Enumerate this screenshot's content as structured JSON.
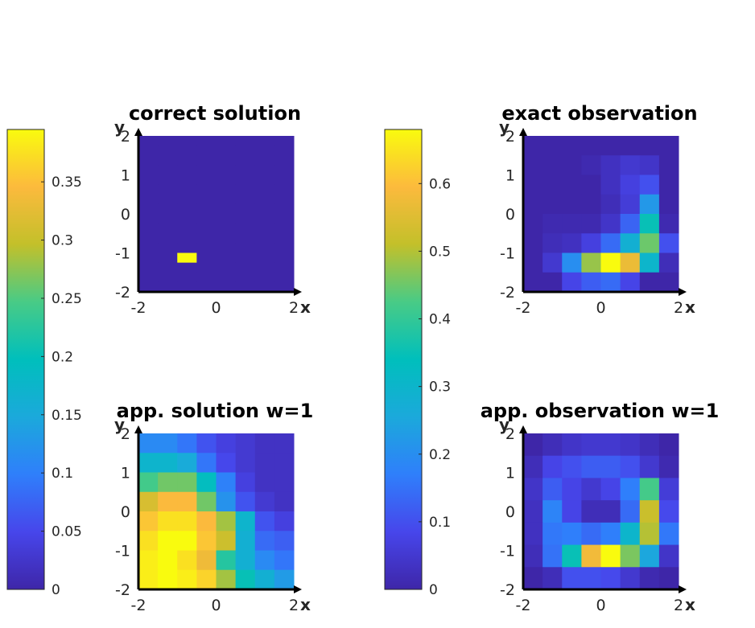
{
  "chart_data": [
    {
      "type": "heatmap",
      "title": "correct solution",
      "xlabel": "x",
      "ylabel": "y",
      "xlim": [
        -2,
        2
      ],
      "ylim": [
        -2,
        2
      ],
      "xticks": [
        "-2",
        "0",
        "2"
      ],
      "yticks": [
        "2",
        "1",
        "0",
        "-1",
        "-2"
      ],
      "colorbar": "left",
      "clim": [
        0,
        0.39
      ],
      "grid_rows_top_to_bottom": [
        [
          0,
          0,
          0,
          0,
          0,
          0,
          0,
          0
        ],
        [
          0,
          0,
          0,
          0,
          0,
          0,
          0,
          0
        ],
        [
          0,
          0,
          0,
          0,
          0,
          0,
          0,
          0
        ],
        [
          0,
          0,
          0,
          0,
          0,
          0,
          0,
          0
        ],
        [
          0,
          0,
          0,
          0,
          0,
          0,
          0,
          0
        ],
        [
          0,
          0,
          0,
          0,
          0,
          0,
          0,
          0
        ],
        [
          0,
          0,
          0,
          0,
          0,
          0,
          0,
          0
        ],
        [
          0,
          0,
          0,
          0,
          0,
          0,
          0,
          0
        ],
        [
          0,
          0,
          0,
          0,
          0,
          0,
          0,
          0
        ],
        [
          0,
          0,
          0,
          0,
          0,
          0,
          0,
          0
        ],
        [
          0,
          0,
          0,
          0,
          0,
          0,
          0,
          0
        ],
        [
          0,
          0,
          0,
          0,
          0,
          0,
          0,
          0
        ],
        [
          0,
          0,
          0.39,
          0,
          0,
          0,
          0,
          0
        ],
        [
          0,
          0,
          0,
          0,
          0,
          0,
          0,
          0
        ],
        [
          0,
          0,
          0,
          0,
          0,
          0,
          0,
          0
        ],
        [
          0,
          0,
          0,
          0,
          0,
          0,
          0,
          0
        ]
      ]
    },
    {
      "type": "heatmap",
      "title": "exact observation",
      "xlabel": "x",
      "ylabel": "y",
      "xlim": [
        -2,
        2
      ],
      "ylim": [
        -2,
        2
      ],
      "xticks": [
        "-2",
        "0",
        "2"
      ],
      "yticks": [
        "2",
        "1",
        "0",
        "-1",
        "-2"
      ],
      "colorbar": "left",
      "clim": [
        0,
        0.68
      ],
      "grid_rows_top_to_bottom": [
        [
          0,
          0,
          0,
          0,
          0,
          0,
          0,
          0
        ],
        [
          0,
          0,
          0,
          0.01,
          0.03,
          0.05,
          0.04,
          0
        ],
        [
          0,
          0,
          0,
          0,
          0.03,
          0.07,
          0.1,
          0
        ],
        [
          0,
          0,
          0,
          0,
          0.02,
          0.06,
          0.22,
          0
        ],
        [
          0,
          0.01,
          0.01,
          0.01,
          0.04,
          0.13,
          0.35,
          0.01
        ],
        [
          0,
          0.02,
          0.03,
          0.07,
          0.14,
          0.28,
          0.45,
          0.1
        ],
        [
          0,
          0.05,
          0.2,
          0.48,
          0.68,
          0.57,
          0.3,
          0.02
        ],
        [
          0,
          0,
          0.08,
          0.12,
          0.14,
          0.08,
          0,
          0
        ]
      ]
    },
    {
      "type": "heatmap",
      "title": "app. solution w=1",
      "xlabel": "x",
      "ylabel": "y",
      "xlim": [
        -2,
        2
      ],
      "ylim": [
        -2,
        2
      ],
      "xticks": [
        "-2",
        "0",
        "2"
      ],
      "yticks": [
        "2",
        "1",
        "0",
        "-1",
        "-2"
      ],
      "colorbar": "left",
      "clim": [
        0,
        0.39
      ],
      "grid_rows_top_to_bottom": [
        [
          0.11,
          0.11,
          0.09,
          0.06,
          0.04,
          0.03,
          0.02,
          0.02
        ],
        [
          0.17,
          0.17,
          0.15,
          0.09,
          0.05,
          0.03,
          0.02,
          0.02
        ],
        [
          0.24,
          0.26,
          0.26,
          0.19,
          0.1,
          0.04,
          0.02,
          0.02
        ],
        [
          0.31,
          0.34,
          0.34,
          0.26,
          0.12,
          0.06,
          0.03,
          0.02
        ],
        [
          0.35,
          0.37,
          0.37,
          0.34,
          0.28,
          0.17,
          0.06,
          0.04
        ],
        [
          0.37,
          0.39,
          0.39,
          0.35,
          0.3,
          0.16,
          0.08,
          0.07
        ],
        [
          0.38,
          0.39,
          0.37,
          0.33,
          0.22,
          0.16,
          0.11,
          0.09
        ],
        [
          0.38,
          0.39,
          0.38,
          0.36,
          0.28,
          0.2,
          0.16,
          0.13
        ]
      ]
    },
    {
      "type": "heatmap",
      "title": "app. observation w=1",
      "xlabel": "x",
      "ylabel": "y",
      "xlim": [
        -2,
        2
      ],
      "ylim": [
        -2,
        2
      ],
      "xticks": [
        "-2",
        "0",
        "2"
      ],
      "yticks": [
        "2",
        "1",
        "0",
        "-1",
        "-2"
      ],
      "colorbar": "left",
      "clim": [
        0,
        0.68
      ],
      "grid_rows_top_to_bottom": [
        [
          0,
          0.02,
          0.04,
          0.05,
          0.05,
          0.04,
          0.02,
          0
        ],
        [
          0.02,
          0.08,
          0.1,
          0.12,
          0.12,
          0.1,
          0.05,
          0.01
        ],
        [
          0.04,
          0.12,
          0.08,
          0.05,
          0.08,
          0.17,
          0.42,
          0.06
        ],
        [
          0.03,
          0.18,
          0.08,
          0.02,
          0.02,
          0.14,
          0.52,
          0.09
        ],
        [
          0.03,
          0.16,
          0.17,
          0.14,
          0.17,
          0.3,
          0.5,
          0.16
        ],
        [
          0.02,
          0.15,
          0.35,
          0.58,
          0.68,
          0.46,
          0.25,
          0.04
        ],
        [
          0,
          0.02,
          0.1,
          0.1,
          0.09,
          0.05,
          0.01,
          0
        ]
      ]
    }
  ],
  "colorbars": [
    {
      "ticks": [
        "0",
        "0.05",
        "0.1",
        "0.15",
        "0.2",
        "0.25",
        "0.3",
        "0.35"
      ],
      "tick_values": [
        0,
        0.05,
        0.1,
        0.15,
        0.2,
        0.25,
        0.3,
        0.35
      ],
      "max": 0.395
    },
    {
      "ticks": [
        "0",
        "0.1",
        "0.2",
        "0.3",
        "0.4",
        "0.5",
        "0.6"
      ],
      "tick_values": [
        0,
        0.1,
        0.2,
        0.3,
        0.4,
        0.5,
        0.6
      ],
      "max": 0.68
    }
  ],
  "colormap": "parula"
}
